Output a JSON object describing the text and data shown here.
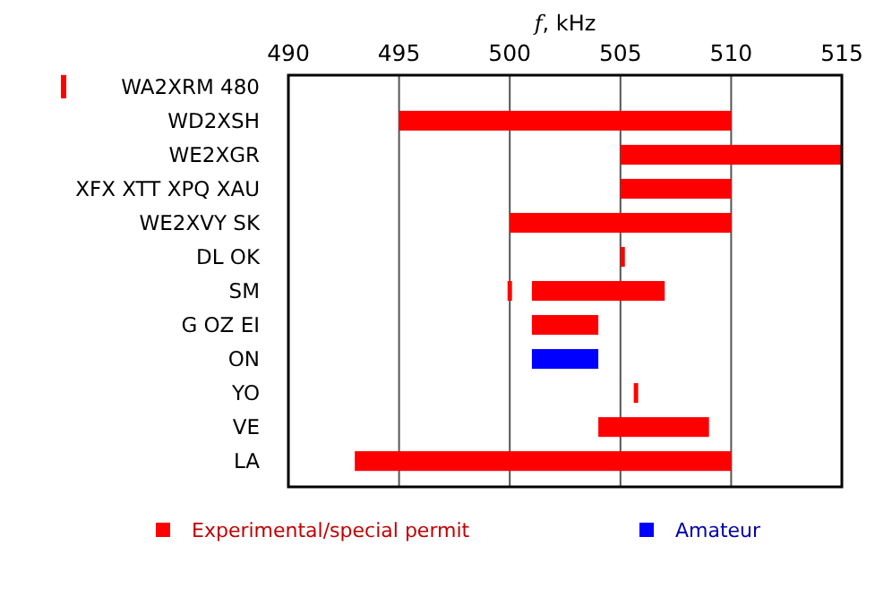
{
  "chart_data": {
    "type": "bar",
    "orientation": "horizontal",
    "xlabel": "f, kHz",
    "categories": [
      "WA2XRM 480",
      "WD2XSH",
      "WE2XGR",
      "XFX XTT XPQ XAU",
      "WE2XVY SK",
      "DL OK",
      "SM",
      "G OZ EI",
      "ON",
      "YO",
      "VE",
      "LA"
    ],
    "series": [
      {
        "name": "Experimental/special permit",
        "color": "#ff0000",
        "base": [
          null,
          495,
          505,
          505,
          500,
          505,
          501,
          501,
          null,
          505.6,
          504,
          493
        ],
        "values": [
          null,
          15,
          10,
          5,
          10,
          0.2,
          6,
          3,
          null,
          0.2,
          5,
          17
        ]
      },
      {
        "name": "Amateur",
        "color": "#0000ff",
        "base": [
          null,
          null,
          null,
          null,
          null,
          null,
          null,
          null,
          501,
          null,
          null,
          null
        ],
        "values": [
          null,
          null,
          null,
          null,
          null,
          null,
          null,
          null,
          3,
          null,
          null,
          null
        ]
      },
      {
        "color": "#ff0000",
        "base": [
          null,
          null,
          null,
          null,
          null,
          null,
          499.9,
          null,
          null,
          null,
          null,
          null
        ],
        "values": [
          null,
          null,
          null,
          null,
          null,
          null,
          0.2,
          null,
          null,
          null,
          null,
          null
        ]
      }
    ],
    "xlim": [
      490,
      515
    ],
    "xticks": [
      490,
      495,
      500,
      505,
      510,
      515
    ],
    "grid": "x",
    "legend": "bottom"
  }
}
